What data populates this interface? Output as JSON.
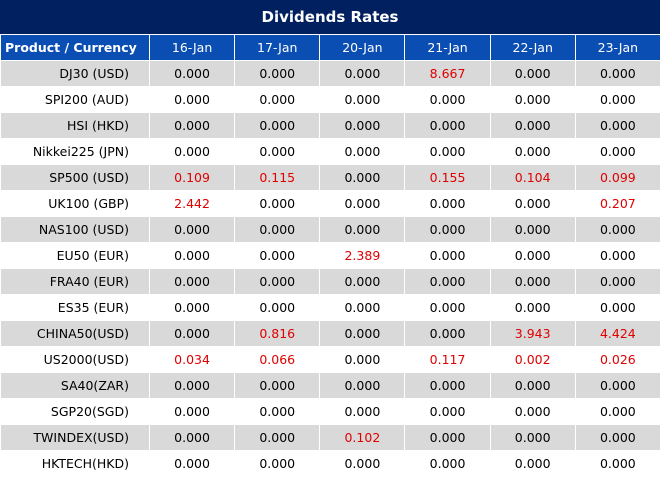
{
  "title": "Dividends Rates",
  "header": [
    "Product / Currency",
    "16-Jan",
    "17-Jan",
    "20-Jan",
    "21-Jan",
    "22-Jan",
    "23-Jan"
  ],
  "rows": [
    {
      "product": "DJ30 (USD)",
      "values": [
        "0.000",
        "0.000",
        "0.000",
        "8.667",
        "0.000",
        "0.000"
      ]
    },
    {
      "product": "SPI200 (AUD)",
      "values": [
        "0.000",
        "0.000",
        "0.000",
        "0.000",
        "0.000",
        "0.000"
      ]
    },
    {
      "product": "HSI (HKD)",
      "values": [
        "0.000",
        "0.000",
        "0.000",
        "0.000",
        "0.000",
        "0.000"
      ]
    },
    {
      "product": "Nikkei225 (JPN)",
      "values": [
        "0.000",
        "0.000",
        "0.000",
        "0.000",
        "0.000",
        "0.000"
      ]
    },
    {
      "product": "SP500 (USD)",
      "values": [
        "0.109",
        "0.115",
        "0.000",
        "0.155",
        "0.104",
        "0.099"
      ]
    },
    {
      "product": "UK100 (GBP)",
      "values": [
        "2.442",
        "0.000",
        "0.000",
        "0.000",
        "0.000",
        "0.207"
      ]
    },
    {
      "product": "NAS100 (USD)",
      "values": [
        "0.000",
        "0.000",
        "0.000",
        "0.000",
        "0.000",
        "0.000"
      ]
    },
    {
      "product": "EU50 (EUR)",
      "values": [
        "0.000",
        "0.000",
        "2.389",
        "0.000",
        "0.000",
        "0.000"
      ]
    },
    {
      "product": "FRA40 (EUR)",
      "values": [
        "0.000",
        "0.000",
        "0.000",
        "0.000",
        "0.000",
        "0.000"
      ]
    },
    {
      "product": "ES35 (EUR)",
      "values": [
        "0.000",
        "0.000",
        "0.000",
        "0.000",
        "0.000",
        "0.000"
      ]
    },
    {
      "product": "CHINA50(USD)",
      "values": [
        "0.000",
        "0.816",
        "0.000",
        "0.000",
        "3.943",
        "4.424"
      ]
    },
    {
      "product": "US2000(USD)",
      "values": [
        "0.034",
        "0.066",
        "0.000",
        "0.117",
        "0.002",
        "0.026"
      ]
    },
    {
      "product": "SA40(ZAR)",
      "values": [
        "0.000",
        "0.000",
        "0.000",
        "0.000",
        "0.000",
        "0.000"
      ]
    },
    {
      "product": "SGP20(SGD)",
      "values": [
        "0.000",
        "0.000",
        "0.000",
        "0.000",
        "0.000",
        "0.000"
      ]
    },
    {
      "product": "TWINDEX(USD)",
      "values": [
        "0.000",
        "0.000",
        "0.102",
        "0.000",
        "0.000",
        "0.000"
      ]
    },
    {
      "product": "HKTECH(HKD)",
      "values": [
        "0.000",
        "0.000",
        "0.000",
        "0.000",
        "0.000",
        "0.000"
      ]
    }
  ],
  "colors": {
    "title_bg": "#002060",
    "header_bg": "#0a4eb4",
    "shade_row": "#d9d9d9",
    "nonzero_text": "#e00000"
  }
}
